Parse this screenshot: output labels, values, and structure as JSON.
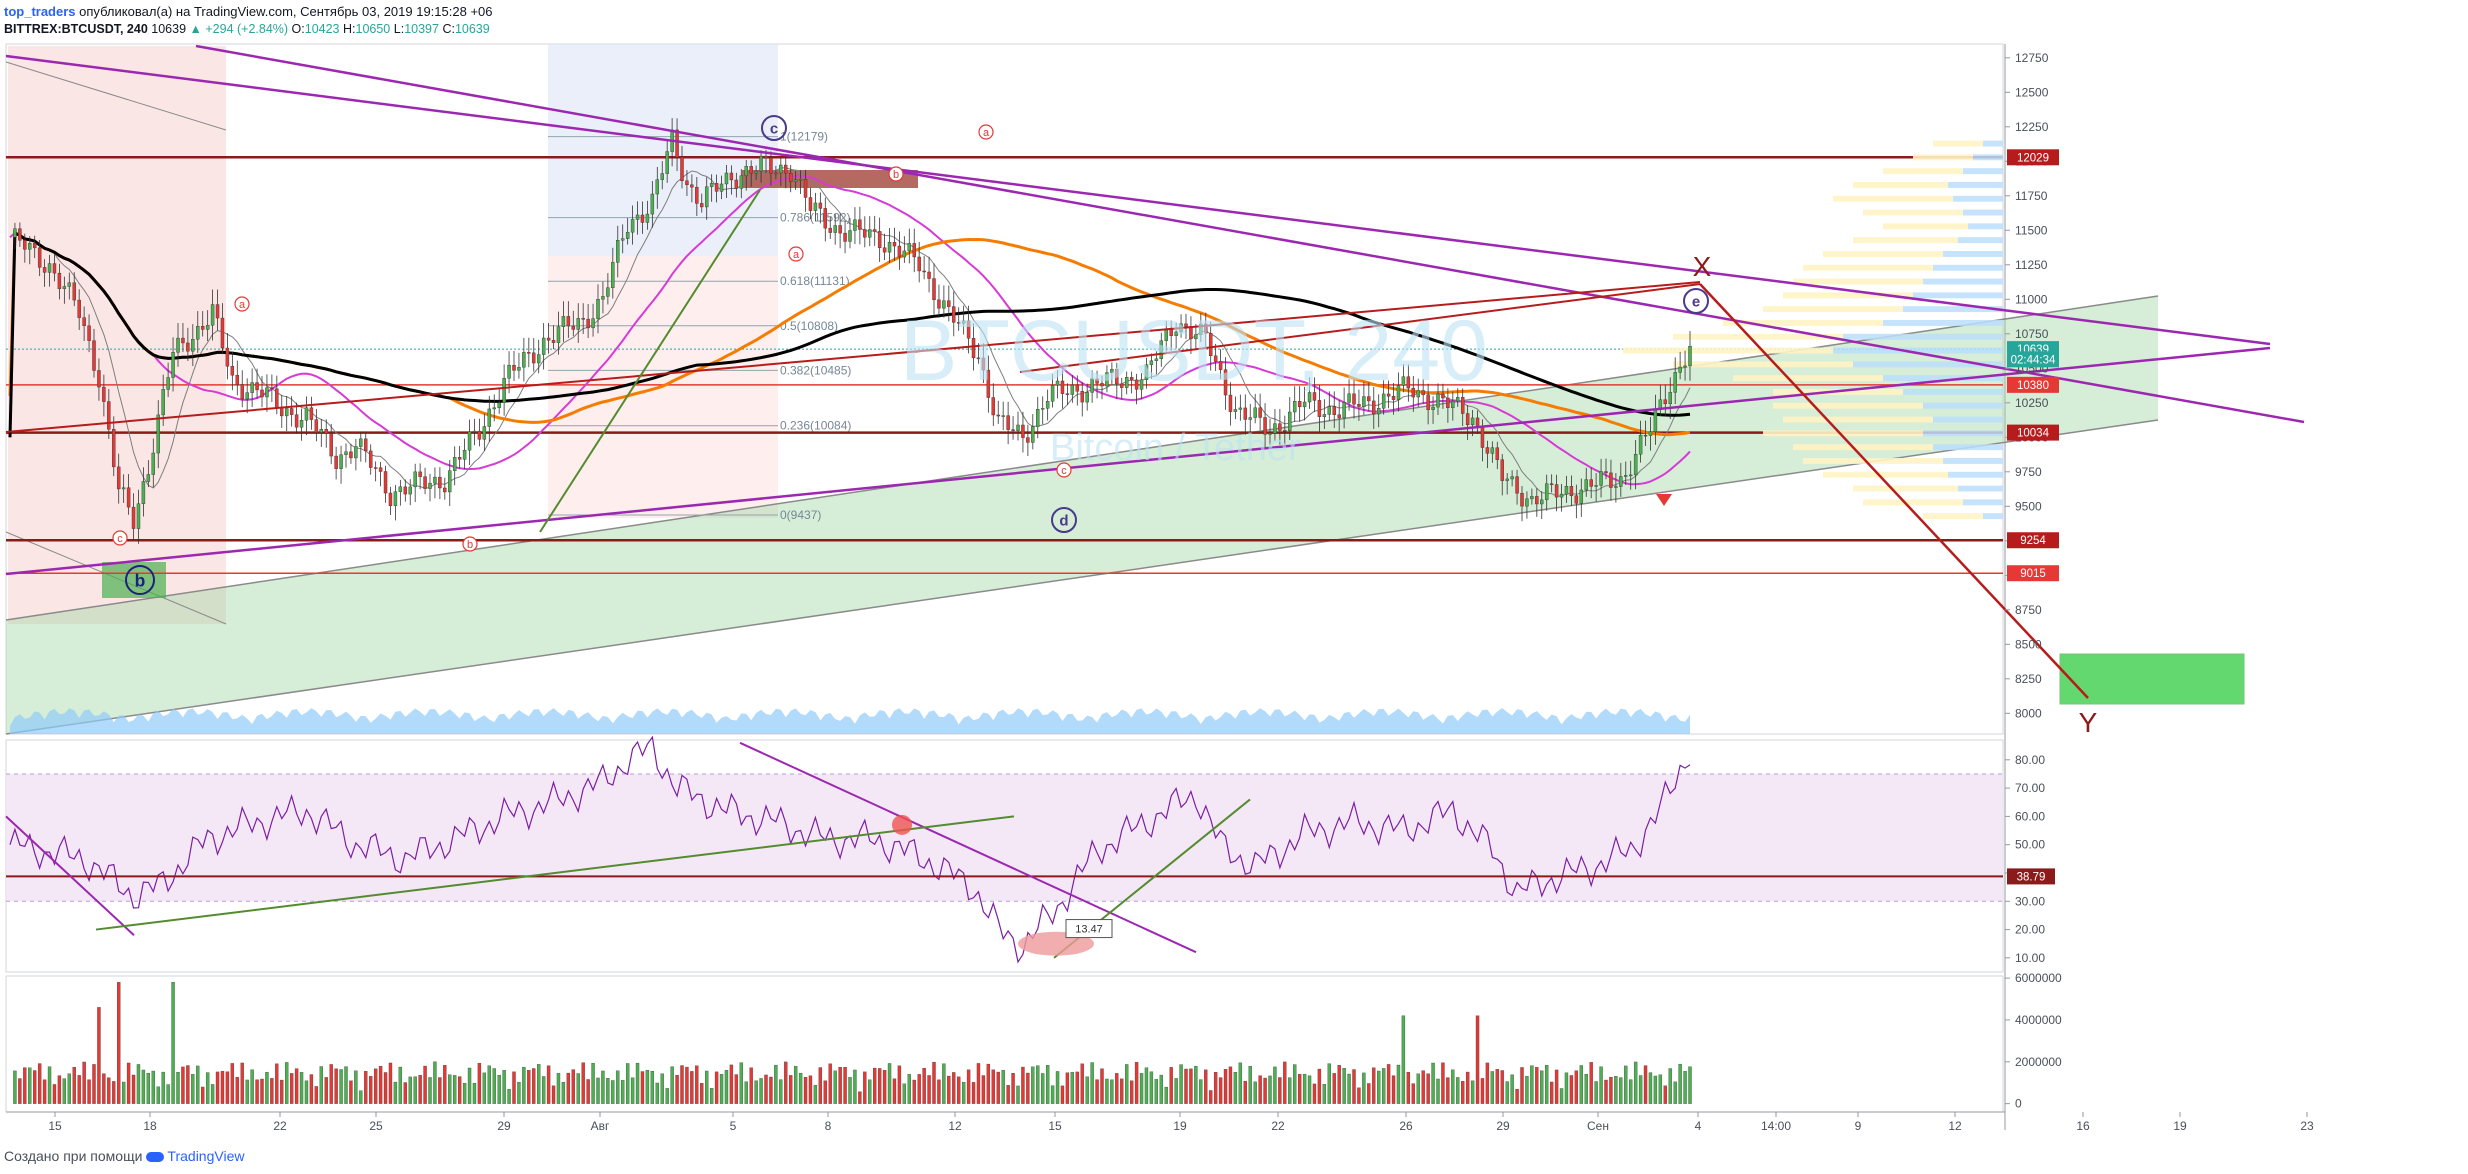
{
  "header": {
    "author": "top_traders",
    "published_text": "опубликовал(а) на TradingView.com, Сентябрь 03, 2019 19:15:28 +06",
    "symbol": "BITTREX:BTCUSDT, 240",
    "price": "10639",
    "change": "▲ +294 (+2.84%)",
    "o_label": "O:",
    "o_value": "10423",
    "h_label": "H:",
    "h_value": "10650",
    "l_label": "L:",
    "l_value": "10397",
    "c_label": "C:",
    "c_value": "10639"
  },
  "footer": {
    "created_with": "Создано при помощи",
    "brand": "TradingView"
  },
  "colors": {
    "up": "#26a69a",
    "candle_up": "#4caf50",
    "candle_down": "#e53935",
    "accent_purple": "#9c27b0",
    "level_red": "#b71c1c",
    "ma_orange": "#f57c00",
    "ma_black": "#000000",
    "volume_blue": "#90caf9"
  },
  "chart_data": {
    "type": "candlestick",
    "watermark": "BTCUSDT, 240",
    "x_ticks": [
      "15",
      "18",
      "22",
      "25",
      "29",
      "Авг",
      "5",
      "8",
      "12",
      "15",
      "19",
      "22",
      "26",
      "29",
      "Сен",
      "4",
      "14:00",
      "9",
      "12",
      "16",
      "19",
      "23"
    ],
    "price_panel": {
      "ylim": [
        7850,
        12850
      ],
      "y_ticks": [
        12750,
        12500,
        12250,
        12000,
        11750,
        11500,
        11250,
        11000,
        10750,
        10500,
        10250,
        10000,
        9750,
        9500,
        9250,
        9000,
        8750,
        8500,
        8250,
        8000
      ],
      "price_labels": [
        {
          "value": 12029,
          "text": "12029",
          "color": "#b71c1c"
        },
        {
          "value": 10639,
          "text": "10639",
          "color": "#26a69a"
        },
        {
          "value": 10565,
          "text": "02:44:34",
          "color": "#26a69a"
        },
        {
          "value": 10380,
          "text": "10380",
          "color": "#e53935"
        },
        {
          "value": 10034,
          "text": "10034",
          "color": "#b71c1c"
        },
        {
          "value": 9254,
          "text": "9254",
          "color": "#b71c1c"
        },
        {
          "value": 9015,
          "text": "9015",
          "color": "#e53935"
        }
      ],
      "horizontal_levels": [
        12029,
        10380,
        10034,
        9254,
        9015
      ],
      "fib_levels": [
        {
          "ratio": "1",
          "value": 12179,
          "text": "1(12179)"
        },
        {
          "ratio": "0.786",
          "value": 11592,
          "text": "0.786(11592)"
        },
        {
          "ratio": "0.618",
          "value": 11131,
          "text": "0.618(11131)"
        },
        {
          "ratio": "0.5",
          "value": 10808,
          "text": "0.5(10808)"
        },
        {
          "ratio": "0.382",
          "value": 10485,
          "text": "0.382(10485)"
        },
        {
          "ratio": "0.236",
          "value": 10084,
          "text": "0.236(10084)"
        },
        {
          "ratio": "0",
          "value": 9437,
          "text": "0(9437)"
        }
      ],
      "wave_labels_circled": [
        "c",
        "b",
        "d",
        "e"
      ],
      "wave_labels_small": [
        "a",
        "c",
        "a",
        "b",
        "a",
        "b",
        "c"
      ],
      "annotations": [
        "X",
        "Y"
      ],
      "overlay_text": "Bitcoin / Tether"
    },
    "rsi_panel": {
      "ylim": [
        5,
        87
      ],
      "y_ticks": [
        80,
        70,
        60,
        50,
        40,
        30,
        20,
        10
      ],
      "current_label": "38.79",
      "band": [
        30,
        75
      ],
      "marked_value": "13.47"
    },
    "volume_panel": {
      "ylim": [
        -400000,
        6100000
      ],
      "y_ticks": [
        6000000,
        4000000,
        2000000,
        0
      ]
    }
  }
}
